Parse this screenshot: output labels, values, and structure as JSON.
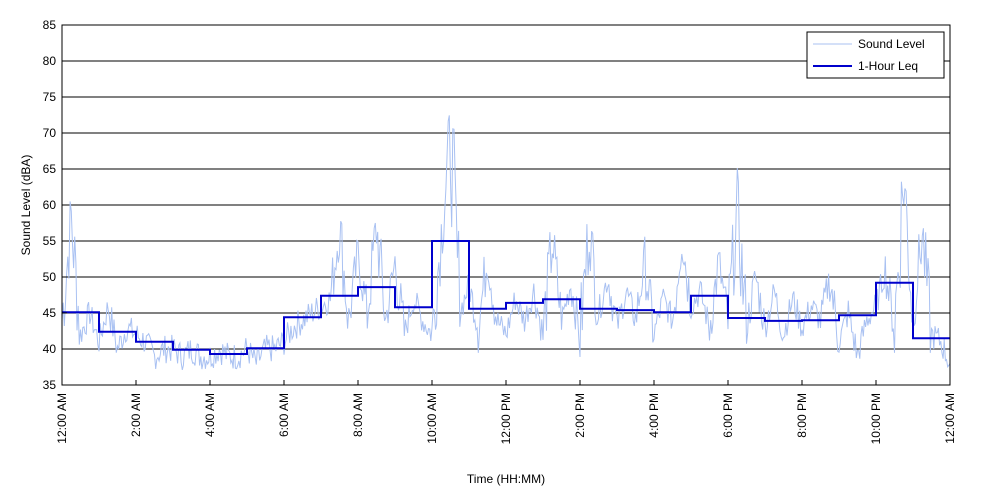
{
  "chart_data": {
    "type": "line",
    "title": "",
    "xlabel": "Time (HH:MM)",
    "ylabel": "Sound Level (dBA)",
    "ylim": [
      35,
      85
    ],
    "yticks": [
      35,
      40,
      45,
      50,
      55,
      60,
      65,
      70,
      75,
      80,
      85
    ],
    "xlim_hours": [
      0,
      24
    ],
    "xticks": [
      {
        "hour": 0,
        "label": "12:00 AM"
      },
      {
        "hour": 2,
        "label": "2:00 AM"
      },
      {
        "hour": 4,
        "label": "4:00 AM"
      },
      {
        "hour": 6,
        "label": "6:00 AM"
      },
      {
        "hour": 8,
        "label": "8:00 AM"
      },
      {
        "hour": 10,
        "label": "10:00 AM"
      },
      {
        "hour": 12,
        "label": "12:00 PM"
      },
      {
        "hour": 14,
        "label": "2:00 PM"
      },
      {
        "hour": 16,
        "label": "4:00 PM"
      },
      {
        "hour": 18,
        "label": "6:00 PM"
      },
      {
        "hour": 20,
        "label": "8:00 PM"
      },
      {
        "hour": 22,
        "label": "10:00 PM"
      },
      {
        "hour": 24,
        "label": "12:00 AM"
      }
    ],
    "grid": "horizontal",
    "legend_position": "top-right",
    "series": [
      {
        "name": "Sound Level",
        "color": "#a9c1f2",
        "x_hours": [
          0.0,
          0.25,
          0.5,
          0.75,
          1.0,
          1.25,
          1.5,
          1.75,
          2.0,
          2.25,
          2.5,
          2.75,
          3.0,
          3.25,
          3.5,
          3.75,
          4.0,
          4.25,
          4.5,
          4.75,
          5.0,
          5.25,
          5.5,
          5.75,
          6.0,
          6.25,
          6.5,
          6.75,
          7.0,
          7.25,
          7.5,
          7.75,
          8.0,
          8.25,
          8.5,
          8.75,
          9.0,
          9.25,
          9.5,
          9.75,
          10.0,
          10.25,
          10.5,
          10.75,
          11.0,
          11.25,
          11.5,
          11.75,
          12.0,
          12.25,
          12.5,
          12.75,
          13.0,
          13.25,
          13.5,
          13.75,
          14.0,
          14.25,
          14.5,
          14.75,
          15.0,
          15.25,
          15.5,
          15.75,
          16.0,
          16.25,
          16.5,
          16.75,
          17.0,
          17.25,
          17.5,
          17.75,
          18.0,
          18.25,
          18.5,
          18.75,
          19.0,
          19.25,
          19.5,
          19.75,
          20.0,
          20.25,
          20.5,
          20.75,
          21.0,
          21.25,
          21.5,
          21.75,
          22.0,
          22.25,
          22.5,
          22.75,
          23.0,
          23.25,
          23.5,
          23.75,
          24.0
        ],
        "values": [
          44,
          58,
          42,
          45,
          41,
          46,
          40,
          43,
          42,
          41,
          39,
          40,
          40,
          39,
          40,
          39,
          39,
          40,
          39,
          39,
          40,
          38,
          40,
          40,
          41,
          43,
          44,
          45,
          46,
          47,
          57,
          44,
          53,
          45,
          57,
          44,
          52,
          42,
          47,
          44,
          42,
          56,
          70,
          45,
          49,
          43,
          53,
          44,
          42,
          47,
          44,
          48,
          42,
          55,
          44,
          49,
          42,
          57,
          45,
          50,
          43,
          48,
          44,
          52,
          42,
          47,
          44,
          56,
          46,
          48,
          43,
          52,
          44,
          59,
          43,
          50,
          43,
          48,
          42,
          47,
          43,
          46,
          44,
          50,
          41,
          45,
          39,
          44,
          46,
          51,
          43,
          64,
          45,
          56,
          42,
          41,
          38
        ]
      },
      {
        "name": "1-Hour Leq",
        "color": "#0000cc",
        "step_hours": [
          0,
          1,
          2,
          3,
          4,
          5,
          6,
          7,
          8,
          9,
          10,
          11,
          12,
          13,
          14,
          15,
          16,
          17,
          18,
          19,
          20,
          21,
          22,
          23,
          24
        ],
        "values": [
          45.1,
          42.4,
          41.0,
          39.9,
          39.3,
          40.1,
          44.4,
          47.4,
          48.6,
          45.8,
          55.0,
          45.6,
          46.4,
          46.9,
          45.6,
          45.4,
          45.1,
          47.4,
          44.3,
          43.9,
          44.0,
          44.7,
          49.2,
          41.5
        ]
      }
    ]
  }
}
